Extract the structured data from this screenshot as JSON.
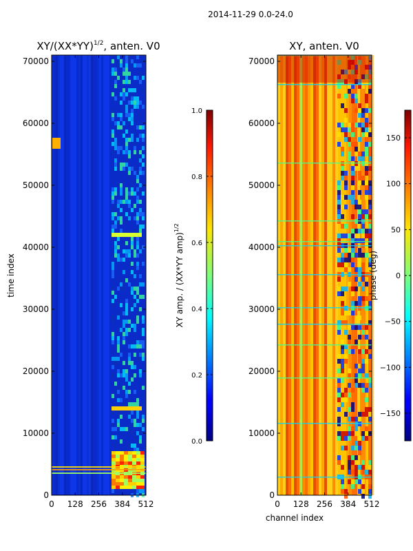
{
  "suptitle": "2014-11-29 0.0-24.0",
  "chart_data": [
    {
      "type": "heatmap",
      "title": "XY/(XX*YY)",
      "title_sup": "1/2",
      "title_suffix": ", anten. V0",
      "xlabel": "",
      "ylabel": "time index",
      "x_ticks": [
        0,
        128,
        256,
        384,
        512
      ],
      "y_ticks": [
        0,
        10000,
        20000,
        30000,
        40000,
        50000,
        60000,
        70000
      ],
      "xlim": [
        0,
        512
      ],
      "ylim": [
        0,
        71000
      ],
      "colorbar": {
        "label": "XY amp. / (XX*YY amp)",
        "label_sup": "1/2",
        "range": [
          0.0,
          1.0
        ],
        "ticks": [
          "0.0",
          "0.2",
          "0.4",
          "0.6",
          "0.8",
          "1.0"
        ],
        "colormap": "jet"
      }
    },
    {
      "type": "heatmap",
      "title": "XY, anten. V0",
      "xlabel": "channel index",
      "ylabel": "",
      "x_ticks": [
        0,
        128,
        256,
        384,
        512
      ],
      "y_ticks": [
        0,
        10000,
        20000,
        30000,
        40000,
        50000,
        60000,
        70000
      ],
      "xlim": [
        0,
        512
      ],
      "ylim": [
        0,
        71000
      ],
      "colorbar": {
        "label": "phase (deg)",
        "range": [
          -180,
          180
        ],
        "ticks": [
          "150",
          "100",
          "50",
          "0",
          "−50",
          "−100",
          "−150"
        ],
        "tick_values": [
          150,
          100,
          50,
          0,
          -50,
          -100,
          -150
        ],
        "colormap": "jet"
      }
    }
  ]
}
